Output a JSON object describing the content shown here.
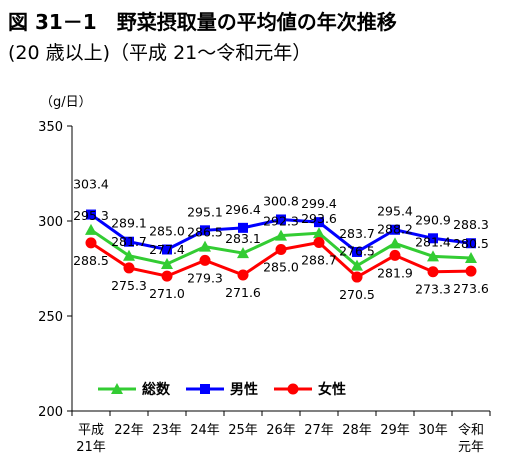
{
  "title": "図 31－1　野菜摂取量の平均値の年次推移",
  "subtitle": "(20 歳以上)（平成 21～令和元年）",
  "chart_data": {
    "type": "line",
    "ylabel": "（g/日）",
    "ylim": [
      200,
      350
    ],
    "yticks": [
      200,
      250,
      300,
      350
    ],
    "categories": [
      [
        "平成",
        "21年"
      ],
      [
        "22年"
      ],
      [
        "23年"
      ],
      [
        "24年"
      ],
      [
        "25年"
      ],
      [
        "26年"
      ],
      [
        "27年"
      ],
      [
        "28年"
      ],
      [
        "29年"
      ],
      [
        "30年"
      ],
      [
        "令和",
        "元年"
      ]
    ],
    "legend_position": "bottom-center",
    "series": [
      {
        "name": "総数",
        "color": "#33cc33",
        "marker": "triangle",
        "values": [
          295.3,
          281.7,
          277.4,
          286.5,
          283.1,
          292.3,
          293.6,
          276.5,
          288.2,
          281.4,
          280.5
        ]
      },
      {
        "name": "男性",
        "color": "#0000ff",
        "marker": "square",
        "values": [
          303.4,
          289.1,
          285.0,
          295.1,
          296.4,
          300.8,
          299.4,
          283.7,
          295.4,
          290.9,
          288.3
        ]
      },
      {
        "name": "女性",
        "color": "#ff0000",
        "marker": "circle",
        "values": [
          288.5,
          275.3,
          271.0,
          279.3,
          271.6,
          285.0,
          288.7,
          270.5,
          281.9,
          273.3,
          273.6
        ]
      }
    ]
  }
}
